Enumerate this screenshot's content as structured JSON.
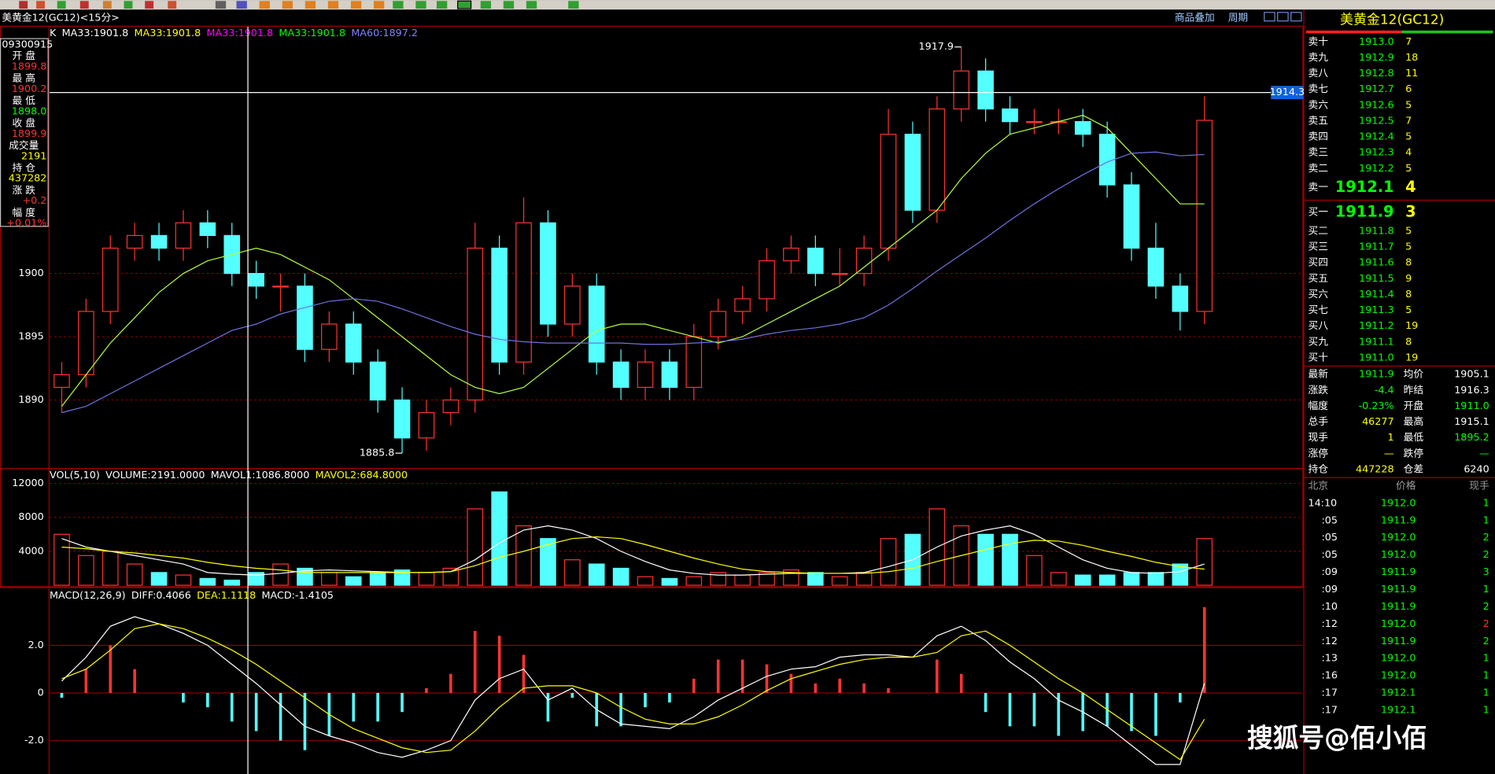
{
  "header": {
    "title": "美黄金12(GC12)<15分>",
    "overlay": "商品叠加",
    "period": "周期"
  },
  "info_panel": {
    "time": "09300915",
    "rows": [
      {
        "label": "开 盘",
        "value": "1899.8",
        "color": "#ff3232"
      },
      {
        "label": "最 高",
        "value": "1900.2",
        "color": "#ff3232"
      },
      {
        "label": "最 低",
        "value": "1898.0",
        "color": "#00ff00"
      },
      {
        "label": "收 盘",
        "value": "1899.9",
        "color": "#ff3232"
      },
      {
        "label": "成交量",
        "value": "2191",
        "color": "#ffff00"
      },
      {
        "label": "持 仓",
        "value": "437282",
        "color": "#ffff00"
      },
      {
        "label": "涨 跌",
        "value": "+0.2",
        "color": "#ff3232"
      },
      {
        "label": "幅 度",
        "value": "+0.01%",
        "color": "#ff3232"
      }
    ]
  },
  "chart_data": [
    {
      "type": "candlestick",
      "up_color": "#ff3232",
      "down_color": "#54ffff",
      "indicator_labels": [
        {
          "text": "K",
          "color": "#ffffff"
        },
        {
          "text": "MA33:1901.8",
          "color": "#ffffff"
        },
        {
          "text": "MA33:1901.8",
          "color": "#ffff00"
        },
        {
          "text": "MA33:1901.8",
          "color": "#ff00ff"
        },
        {
          "text": "MA33:1901.8",
          "color": "#00ff00"
        },
        {
          "text": "MA60:1897.2",
          "color": "#8080ff"
        }
      ],
      "open": [
        1891,
        1892,
        1897,
        1902,
        1903,
        1902,
        1904,
        1903,
        1900,
        1899,
        1899,
        1894,
        1896,
        1893,
        1890,
        1887,
        1889,
        1890,
        1902,
        1893,
        1904,
        1896,
        1899,
        1893,
        1891,
        1893,
        1891,
        1895,
        1897,
        1898,
        1901,
        1902,
        1900,
        1900,
        1902,
        1911,
        1905,
        1913,
        1916,
        1913,
        1912,
        1912,
        1912,
        1911,
        1907,
        1902,
        1899,
        1897
      ],
      "high": [
        1893,
        1898,
        1903,
        1904,
        1904,
        1905,
        1905,
        1904,
        1901,
        1900,
        1900,
        1897,
        1897,
        1894,
        1891,
        1890,
        1891,
        1904,
        1903,
        1906,
        1905,
        1900,
        1900,
        1894,
        1894,
        1894,
        1896,
        1898,
        1899,
        1902,
        1903,
        1903,
        1902,
        1903,
        1913,
        1912,
        1914,
        1917.9,
        1917,
        1914,
        1913,
        1913,
        1913,
        1912,
        1908,
        1904,
        1900,
        1914
      ],
      "low": [
        1889,
        1891,
        1896,
        1901,
        1901,
        1901,
        1902,
        1899,
        1898,
        1897,
        1893,
        1893,
        1892,
        1889,
        1885.8,
        1886,
        1888,
        1889,
        1892,
        1892,
        1895,
        1895,
        1892,
        1890,
        1890,
        1890,
        1890,
        1894,
        1896,
        1897,
        1900,
        1899,
        1899,
        1899,
        1901,
        1904,
        1904,
        1912,
        1912,
        1911,
        1911,
        1911,
        1910,
        1906,
        1901,
        1898,
        1895.5,
        1896
      ],
      "close": [
        1892,
        1897,
        1902,
        1903,
        1902,
        1904,
        1903,
        1900,
        1899,
        1899,
        1894,
        1896,
        1893,
        1890,
        1887,
        1889,
        1890,
        1902,
        1893,
        1904,
        1896,
        1899,
        1893,
        1891,
        1893,
        1891,
        1895,
        1897,
        1898,
        1901,
        1902,
        1900,
        1900,
        1902,
        1911,
        1905,
        1913,
        1916,
        1913,
        1912,
        1912,
        1912,
        1911,
        1907,
        1902,
        1899,
        1897,
        1912.1
      ],
      "series": [
        {
          "name": "MA33",
          "color": "#b4ff3c",
          "values": [
            1889.5,
            1892,
            1894.5,
            1896.5,
            1898.5,
            1900,
            1901,
            1901.5,
            1902,
            1901.5,
            1900.5,
            1899.5,
            1898,
            1896.5,
            1895,
            1893.5,
            1892,
            1891,
            1890.5,
            1891,
            1892.5,
            1894,
            1895.5,
            1896,
            1896,
            1895.5,
            1895,
            1894.5,
            1895,
            1896,
            1897,
            1898,
            1899,
            1900.5,
            1902,
            1903.5,
            1905,
            1907.5,
            1909.5,
            1911,
            1911.5,
            1912,
            1912.5,
            1911.5,
            1909.5,
            1907.5,
            1905.5,
            1905.5
          ]
        },
        {
          "name": "MA60",
          "color": "#7070e0",
          "values": [
            1889,
            1889.5,
            1890.5,
            1891.5,
            1892.5,
            1893.5,
            1894.5,
            1895.5,
            1896,
            1896.8,
            1897.3,
            1897.8,
            1898,
            1897.8,
            1897.2,
            1896.5,
            1895.8,
            1895.2,
            1894.8,
            1894.6,
            1894.5,
            1894.5,
            1894.5,
            1894.5,
            1894.4,
            1894.4,
            1894.5,
            1894.6,
            1894.8,
            1895.2,
            1895.5,
            1895.7,
            1896,
            1896.5,
            1897.5,
            1898.8,
            1900.2,
            1901.5,
            1902.8,
            1904.2,
            1905.5,
            1906.7,
            1907.8,
            1908.8,
            1909.5,
            1909.6,
            1909.3,
            1909.4
          ]
        }
      ],
      "last_price": 1914.3,
      "ylim": [
        1884.7,
        1919.5
      ],
      "yticks": [
        1890,
        1895,
        1900
      ]
    },
    {
      "type": "bar",
      "indicator_labels": [
        {
          "text": "VOL(5,10)",
          "color": "#ffffff"
        },
        {
          "text": "VOLUME:2191.0000",
          "color": "#ffffff"
        },
        {
          "text": "MAVOL1:1086.8000",
          "color": "#ffffff"
        },
        {
          "text": "MAVOL2:684.8000",
          "color": "#ffff00"
        }
      ],
      "values": [
        6000,
        3500,
        4000,
        2500,
        1500,
        1200,
        800,
        600,
        1500,
        2500,
        2000,
        1500,
        1000,
        1500,
        1800,
        1500,
        2000,
        9000,
        11000,
        7000,
        5500,
        3000,
        2500,
        2000,
        1000,
        800,
        1000,
        1500,
        1200,
        1500,
        1800,
        1500,
        1000,
        1500,
        5500,
        6000,
        9000,
        7000,
        6000,
        6000,
        3500,
        1500,
        1200,
        1200,
        1500,
        1500,
        2500,
        5500
      ],
      "series": [
        {
          "name": "MAVOL1",
          "color": "#ffffff",
          "values": [
            5500,
            4500,
            4000,
            3500,
            3000,
            2500,
            1500,
            1300,
            1200,
            1400,
            1700,
            1800,
            1700,
            1600,
            1500,
            1500,
            1600,
            3000,
            5000,
            6500,
            7000,
            6500,
            5500,
            4000,
            2800,
            1800,
            1400,
            1200,
            1200,
            1300,
            1400,
            1400,
            1400,
            1500,
            2200,
            3000,
            4500,
            5800,
            6500,
            7000,
            6000,
            4500,
            3000,
            2000,
            1500,
            1400,
            1600,
            2500
          ]
        },
        {
          "name": "MAVOL2",
          "color": "#ffff00",
          "values": [
            4500,
            4300,
            4000,
            3800,
            3500,
            3200,
            2700,
            2300,
            2000,
            1800,
            1500,
            1500,
            1500,
            1500,
            1500,
            1500,
            1600,
            2300,
            3300,
            4000,
            4800,
            5500,
            5700,
            5500,
            4800,
            4000,
            3200,
            2500,
            1900,
            1600,
            1500,
            1400,
            1400,
            1400,
            1600,
            2000,
            2800,
            3500,
            4200,
            4900,
            5300,
            5200,
            4700,
            4000,
            3400,
            2700,
            2200,
            1900
          ]
        }
      ],
      "ylim": [
        0,
        13700
      ],
      "yticks": [
        4000,
        8000,
        12000
      ]
    },
    {
      "type": "macd",
      "up_color": "#ff3232",
      "down_color": "#54ffff",
      "indicator_labels": [
        {
          "text": "MACD(12,26,9)",
          "color": "#ffffff"
        },
        {
          "text": "DIFF:0.4066",
          "color": "#ffffff"
        },
        {
          "text": "DEA:1.1118",
          "color": "#ffff00"
        },
        {
          "text": "MACD:-1.4105",
          "color": "#ffffff"
        }
      ],
      "histogram": [
        -0.2,
        1.0,
        2.0,
        1.0,
        0,
        -0.4,
        -0.6,
        -1.2,
        -1.6,
        -2.0,
        -2.4,
        -1.8,
        -1.2,
        -1.2,
        -0.8,
        0.2,
        0.8,
        2.6,
        2.4,
        1.6,
        -1.2,
        -0.2,
        -1.4,
        -1.4,
        -0.6,
        -0.4,
        0.6,
        1.4,
        1.4,
        1.2,
        0.8,
        0.4,
        0.6,
        0.4,
        0.2,
        0,
        1.4,
        0.8,
        -0.8,
        -1.4,
        -1.4,
        -1.8,
        -1.6,
        -1.4,
        -1.6,
        -1.8,
        -0.4,
        3.6
      ],
      "series": [
        {
          "name": "DIFF",
          "color": "#ffffff",
          "values": [
            0.5,
            1.5,
            2.8,
            3.2,
            2.9,
            2.5,
            2.0,
            1.2,
            0.4,
            -0.5,
            -1.4,
            -1.8,
            -2.1,
            -2.5,
            -2.7,
            -2.4,
            -2.0,
            -0.3,
            0.6,
            1.0,
            -0.3,
            0.2,
            -0.7,
            -1.3,
            -1.4,
            -1.5,
            -1.0,
            -0.3,
            0.2,
            0.7,
            1.0,
            1.1,
            1.5,
            1.6,
            1.6,
            1.5,
            2.4,
            2.8,
            2.2,
            1.3,
            0.6,
            -0.3,
            -0.8,
            -1.4,
            -2.2,
            -3.0,
            -3.0,
            0.4
          ]
        },
        {
          "name": "DEA",
          "color": "#ffff00",
          "values": [
            0.6,
            1.0,
            1.8,
            2.7,
            2.9,
            2.7,
            2.3,
            1.8,
            1.2,
            0.5,
            -0.2,
            -0.9,
            -1.5,
            -1.9,
            -2.3,
            -2.5,
            -2.4,
            -1.6,
            -0.6,
            0.2,
            0.3,
            0.3,
            0.0,
            -0.6,
            -1.1,
            -1.3,
            -1.3,
            -1.0,
            -0.5,
            0.1,
            0.6,
            0.9,
            1.2,
            1.4,
            1.5,
            1.5,
            1.7,
            2.4,
            2.6,
            2.0,
            1.3,
            0.6,
            0.0,
            -0.7,
            -1.4,
            -2.1,
            -2.8,
            -1.1
          ]
        }
      ],
      "ylim": [
        -3.2,
        4.4
      ],
      "yticks": [
        {
          "value": -2,
          "label": "-2.0"
        },
        0,
        {
          "value": 2,
          "label": "2.0"
        }
      ]
    }
  ],
  "side_panel": {
    "title": "美黄金12(GC12)",
    "asks": [
      [
        "卖十",
        "1913.0",
        "7"
      ],
      [
        "卖九",
        "1912.9",
        "18"
      ],
      [
        "卖八",
        "1912.8",
        "11"
      ],
      [
        "卖七",
        "1912.7",
        "6"
      ],
      [
        "卖六",
        "1912.6",
        "5"
      ],
      [
        "卖五",
        "1912.5",
        "7"
      ],
      [
        "卖四",
        "1912.4",
        "5"
      ],
      [
        "卖三",
        "1912.3",
        "4"
      ],
      [
        "卖二",
        "1912.2",
        "5"
      ],
      [
        "卖一",
        "1912.1",
        "4"
      ]
    ],
    "bids": [
      [
        "买一",
        "1911.9",
        "3"
      ],
      [
        "买二",
        "1911.8",
        "5"
      ],
      [
        "买三",
        "1911.7",
        "5"
      ],
      [
        "买四",
        "1911.6",
        "8"
      ],
      [
        "买五",
        "1911.5",
        "9"
      ],
      [
        "买六",
        "1911.4",
        "8"
      ],
      [
        "买七",
        "1911.3",
        "5"
      ],
      [
        "买八",
        "1911.2",
        "19"
      ],
      [
        "买九",
        "1911.1",
        "8"
      ],
      [
        "买十",
        "1911.0",
        "19"
      ]
    ],
    "stats": [
      [
        "最新",
        "1911.9",
        "均价",
        "1905.1"
      ],
      [
        "涨跌",
        "-4.4",
        "昨结",
        "1916.3"
      ],
      [
        "幅度",
        "-0.23%",
        "开盘",
        "1911.0"
      ],
      [
        "总手",
        "46277",
        "最高",
        "1915.1"
      ],
      [
        "现手",
        "1",
        "最低",
        "1895.2"
      ],
      [
        "涨停",
        "—",
        "跌停",
        "—"
      ],
      [
        "持仓",
        "447228",
        "仓差",
        "6240"
      ]
    ],
    "trades_header": [
      "北京",
      "价格",
      "现手"
    ],
    "trades": [
      [
        "14:10",
        "1912.0",
        "1"
      ],
      [
        ":05",
        "1911.9",
        "1"
      ],
      [
        ":05",
        "1912.0",
        "2"
      ],
      [
        ":05",
        "1912.0",
        "2"
      ],
      [
        ":09",
        "1911.9",
        "3"
      ],
      [
        ":09",
        "1911.9",
        "1"
      ],
      [
        ":10",
        "1911.9",
        "2"
      ],
      [
        ":12",
        "1912.0",
        "2"
      ],
      [
        ":12",
        "1911.9",
        "2"
      ],
      [
        ":13",
        "1912.0",
        "1"
      ],
      [
        ":16",
        "1912.0",
        "1"
      ],
      [
        ":17",
        "1912.1",
        "1"
      ],
      [
        ":17",
        "1912.1",
        "1"
      ]
    ]
  },
  "watermark": "搜狐号@佰小佰"
}
